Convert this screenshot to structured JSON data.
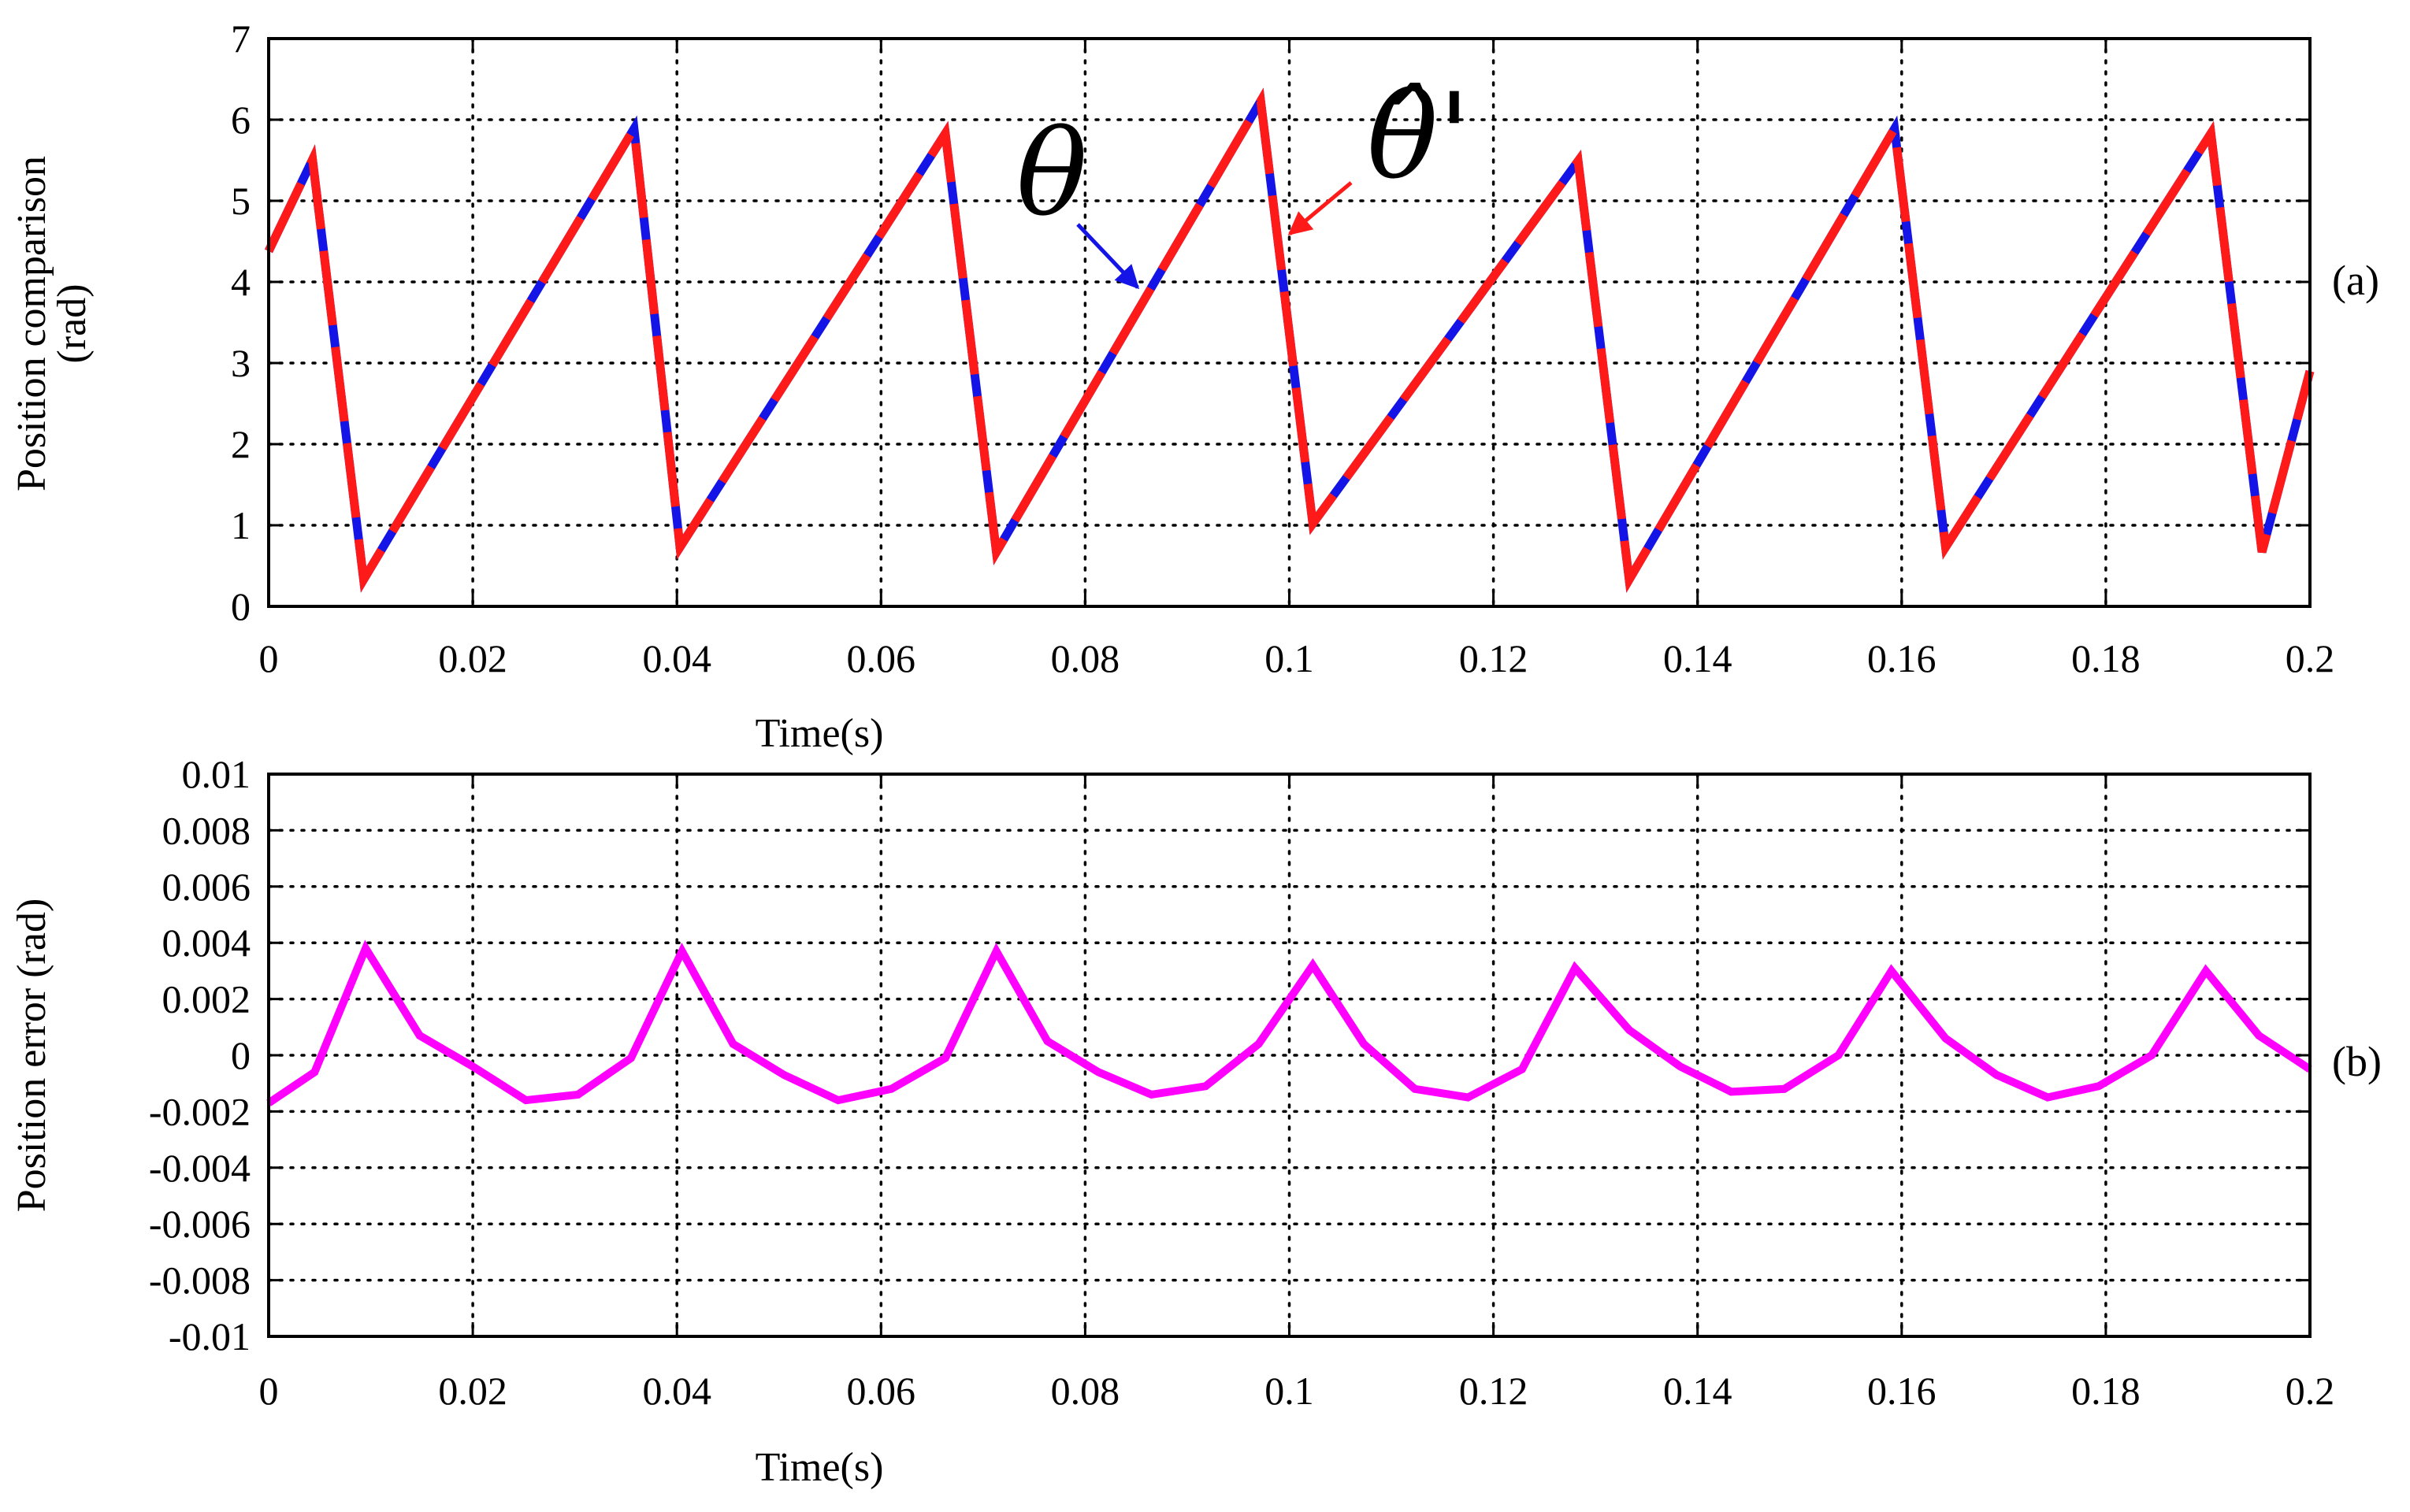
{
  "chart_data": [
    {
      "id": "a",
      "type": "line",
      "panel_tag": "(a)",
      "xlabel": "Time(s)",
      "ylabel_line1": "Position comparison",
      "ylabel_line2": "(rad)",
      "xlim": [
        0,
        0.2
      ],
      "ylim": [
        0,
        7
      ],
      "xticks": [
        0,
        0.02,
        0.04,
        0.06,
        0.08,
        0.1,
        0.12,
        0.14,
        0.16,
        0.18,
        0.2
      ],
      "xtick_labels": [
        "0",
        "0.02",
        "0.04",
        "0.06",
        "0.08",
        "0.1",
        "0.12",
        "0.14",
        "0.16",
        "0.18",
        "0.2"
      ],
      "yticks": [
        0,
        1,
        2,
        3,
        4,
        5,
        6,
        7
      ],
      "ytick_labels": [
        "0",
        "1",
        "2",
        "3",
        "4",
        "5",
        "6",
        "7"
      ],
      "grid": true,
      "series": [
        {
          "name": "θ",
          "color": "#1414e6",
          "style": "solid",
          "x": [
            0,
            0.0043,
            0.0093,
            0.0358,
            0.0403,
            0.0663,
            0.0713,
            0.0972,
            0.1023,
            0.1283,
            0.1333,
            0.1593,
            0.1643,
            0.1903,
            0.1953,
            0.2
          ],
          "y": [
            4.38,
            5.51,
            0.33,
            5.89,
            0.73,
            5.83,
            0.67,
            6.23,
            1.02,
            5.49,
            0.33,
            5.89,
            0.73,
            5.83,
            0.67,
            2.9
          ]
        },
        {
          "name": "θ̂'",
          "color": "#ff1a1a",
          "style": "dashed",
          "x": [
            0,
            0.0043,
            0.0093,
            0.0358,
            0.0403,
            0.0663,
            0.0713,
            0.0972,
            0.1023,
            0.1283,
            0.1333,
            0.1593,
            0.1643,
            0.1903,
            0.1953,
            0.2
          ],
          "y": [
            4.38,
            5.51,
            0.33,
            5.89,
            0.73,
            5.83,
            0.67,
            6.23,
            1.02,
            5.49,
            0.33,
            5.89,
            0.73,
            5.83,
            0.67,
            2.9
          ]
        }
      ],
      "annotations": [
        {
          "text": "θ",
          "points_to": [
            0.0865,
            3.85
          ],
          "color": "#1414e6"
        },
        {
          "text": "θ̂'",
          "points_to": [
            0.1003,
            4.4
          ],
          "color": "#ff1a1a"
        }
      ]
    },
    {
      "id": "b",
      "type": "line",
      "panel_tag": "(b)",
      "xlabel": "Time(s)",
      "ylabel": "Position error (rad)",
      "xlim": [
        0,
        0.2
      ],
      "ylim": [
        -0.01,
        0.01
      ],
      "xticks": [
        0,
        0.02,
        0.04,
        0.06,
        0.08,
        0.1,
        0.12,
        0.14,
        0.16,
        0.18,
        0.2
      ],
      "xtick_labels": [
        "0",
        "0.02",
        "0.04",
        "0.06",
        "0.08",
        "0.1",
        "0.12",
        "0.14",
        "0.16",
        "0.18",
        "0.2"
      ],
      "yticks": [
        0.01,
        0.008,
        0.006,
        0.004,
        0.002,
        0,
        -0.002,
        -0.004,
        -0.006,
        -0.008,
        -0.01
      ],
      "ytick_labels": [
        "0.01",
        "0.008",
        "0.006",
        "0.004",
        "0.002",
        "0",
        "-0.002",
        "-0.004",
        "-0.006",
        "-0.008",
        "-0.01"
      ],
      "grid": true,
      "series": [
        {
          "name": "position error",
          "color": "#ff00ff",
          "x": [
            0,
            0.0045,
            0.0095,
            0.0148,
            0.02,
            0.0252,
            0.0303,
            0.0355,
            0.0405,
            0.0455,
            0.0505,
            0.0558,
            0.061,
            0.0663,
            0.0713,
            0.0763,
            0.0813,
            0.0865,
            0.0918,
            0.097,
            0.1023,
            0.1073,
            0.1123,
            0.1175,
            0.1228,
            0.128,
            0.1333,
            0.1383,
            0.1433,
            0.1485,
            0.1538,
            0.159,
            0.1643,
            0.1693,
            0.1743,
            0.1793,
            0.1845,
            0.1898,
            0.195,
            0.2
          ],
          "y": [
            -0.0017,
            -0.0006,
            0.0038,
            0.0007,
            -0.0004,
            -0.0016,
            -0.0014,
            -0.0001,
            0.0037,
            0.0004,
            -0.0007,
            -0.0016,
            -0.0012,
            -0.0001,
            0.0037,
            0.0005,
            -0.0006,
            -0.0014,
            -0.0011,
            0.0004,
            0.0032,
            0.0004,
            -0.0012,
            -0.0015,
            -0.0005,
            0.0031,
            0.0009,
            -0.0004,
            -0.0013,
            -0.0012,
            0.0,
            0.003,
            0.0006,
            -0.0007,
            -0.0015,
            -0.0011,
            0.0,
            0.003,
            0.0007,
            -0.0005
          ]
        }
      ]
    }
  ]
}
